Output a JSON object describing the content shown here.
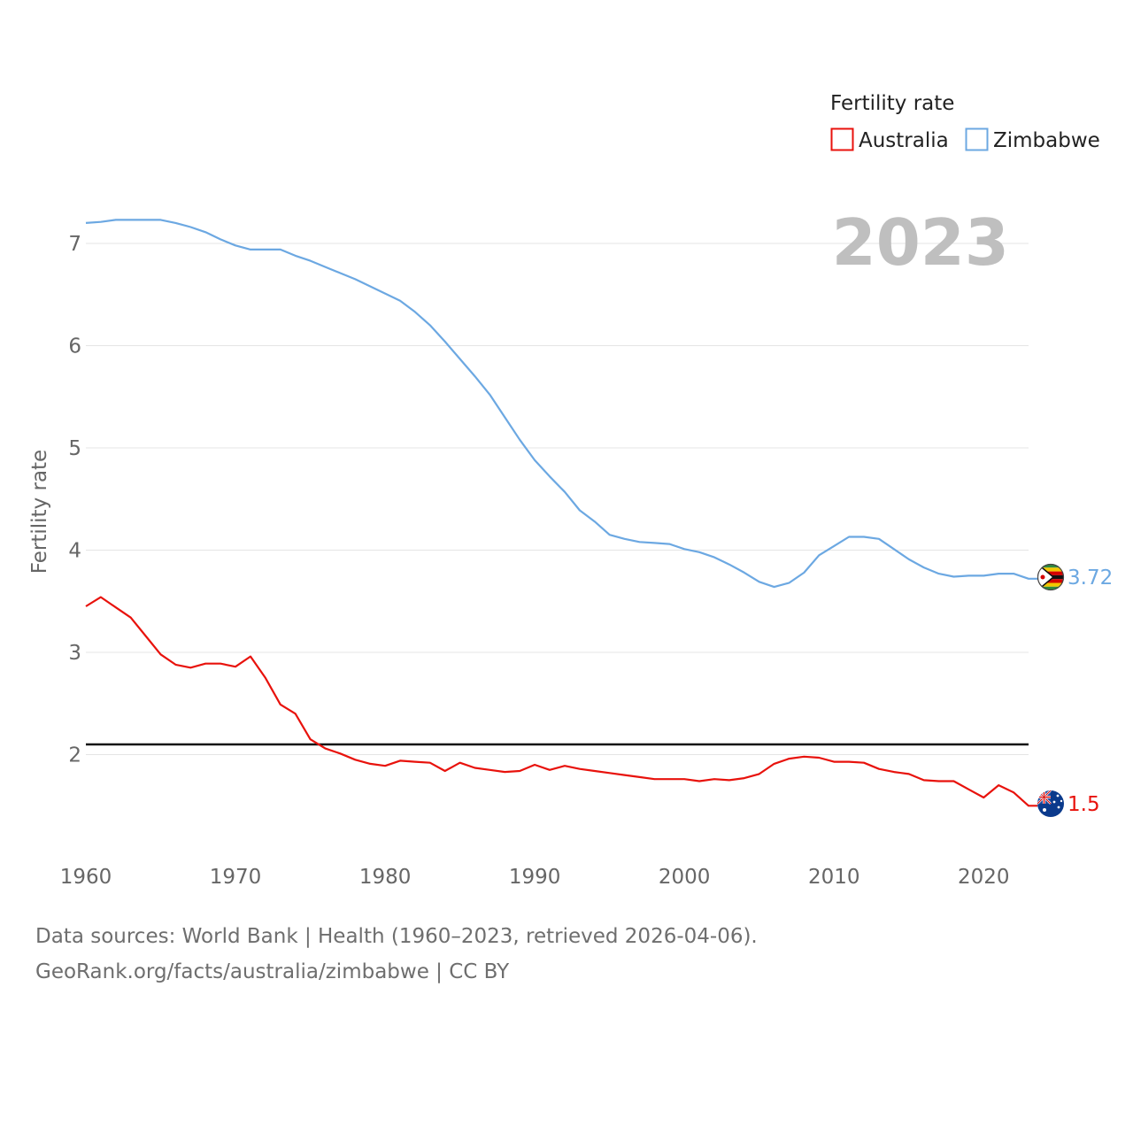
{
  "chart_data": {
    "type": "line",
    "title": "",
    "legend_title": "Fertility rate",
    "year_label": "2023",
    "xlabel": "",
    "ylabel": "Fertility rate",
    "xlim": [
      1960,
      2023
    ],
    "ylim": [
      1,
      7.6
    ],
    "x_ticks": [
      1960,
      1970,
      1980,
      1990,
      2000,
      2010,
      2020
    ],
    "y_ticks": [
      2,
      3,
      4,
      5,
      6,
      7
    ],
    "reference_line": {
      "value": 2.1,
      "color": "#111111"
    },
    "x": [
      1960,
      1961,
      1962,
      1963,
      1964,
      1965,
      1966,
      1967,
      1968,
      1969,
      1970,
      1971,
      1972,
      1973,
      1974,
      1975,
      1976,
      1977,
      1978,
      1979,
      1980,
      1981,
      1982,
      1983,
      1984,
      1985,
      1986,
      1987,
      1988,
      1989,
      1990,
      1991,
      1992,
      1993,
      1994,
      1995,
      1996,
      1997,
      1998,
      1999,
      2000,
      2001,
      2002,
      2003,
      2004,
      2005,
      2006,
      2007,
      2008,
      2009,
      2010,
      2011,
      2012,
      2013,
      2014,
      2015,
      2016,
      2017,
      2018,
      2019,
      2020,
      2021,
      2022,
      2023
    ],
    "series": [
      {
        "name": "Australia",
        "color": "#e8120c",
        "end_label": "1.5",
        "values": [
          3.45,
          3.54,
          3.44,
          3.34,
          3.16,
          2.98,
          2.88,
          2.85,
          2.89,
          2.89,
          2.86,
          2.96,
          2.75,
          2.49,
          2.4,
          2.15,
          2.06,
          2.01,
          1.95,
          1.91,
          1.89,
          1.94,
          1.93,
          1.92,
          1.84,
          1.92,
          1.87,
          1.85,
          1.83,
          1.84,
          1.9,
          1.85,
          1.89,
          1.86,
          1.84,
          1.82,
          1.8,
          1.78,
          1.76,
          1.76,
          1.76,
          1.74,
          1.76,
          1.75,
          1.77,
          1.81,
          1.91,
          1.96,
          1.98,
          1.97,
          1.93,
          1.93,
          1.92,
          1.86,
          1.83,
          1.81,
          1.75,
          1.74,
          1.74,
          1.66,
          1.58,
          1.7,
          1.63,
          1.5
        ]
      },
      {
        "name": "Zimbabwe",
        "color": "#6ca8e2",
        "end_label": "3.72",
        "values": [
          7.2,
          7.21,
          7.23,
          7.23,
          7.23,
          7.23,
          7.2,
          7.16,
          7.11,
          7.04,
          6.98,
          6.94,
          6.94,
          6.94,
          6.88,
          6.83,
          6.77,
          6.71,
          6.65,
          6.58,
          6.51,
          6.44,
          6.33,
          6.2,
          6.04,
          5.87,
          5.7,
          5.52,
          5.3,
          5.08,
          4.88,
          4.72,
          4.57,
          4.39,
          4.28,
          4.15,
          4.11,
          4.08,
          4.07,
          4.06,
          4.01,
          3.98,
          3.93,
          3.86,
          3.78,
          3.69,
          3.64,
          3.68,
          3.78,
          3.95,
          4.04,
          4.13,
          4.13,
          4.11,
          4.01,
          3.91,
          3.83,
          3.77,
          3.74,
          3.75,
          3.75,
          3.77,
          3.77,
          3.72
        ]
      }
    ]
  },
  "footer": {
    "line1": "Data sources: World Bank | Health (1960–2023, retrieved 2026-04-06).",
    "line2": "GeoRank.org/facts/australia/zimbabwe | CC BY"
  }
}
